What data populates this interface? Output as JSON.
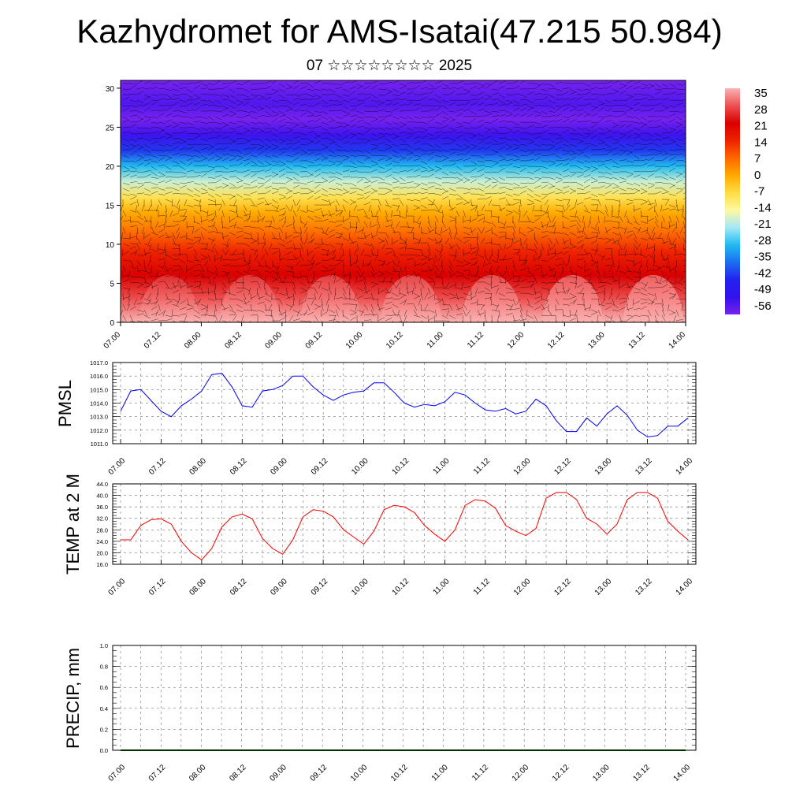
{
  "title": "Kazhydromet for AMS-Isatai(47.215 50.984)",
  "subtitle": "07 ☆☆☆☆☆☆☆☆ 2025",
  "time_labels": [
    "07.00",
    "07.12",
    "08.00",
    "08.12",
    "09.00",
    "09.12",
    "10.00",
    "10.12",
    "11.00",
    "11.12",
    "12.00",
    "12.12",
    "13.00",
    "13.12",
    "14.00"
  ],
  "colors": {
    "pmsl_line": "#0000ff",
    "temp_line": "#ff0000",
    "precip_line": "#006400",
    "grid": "#000000"
  },
  "chart_data": [
    {
      "type": "heatmap",
      "description_fields": "vertical cross-section of temperature with wind barbs",
      "x_categories": [
        "07.00",
        "07.12",
        "08.00",
        "08.12",
        "09.00",
        "09.12",
        "10.00",
        "10.12",
        "11.00",
        "11.12",
        "12.00",
        "12.12",
        "13.00",
        "13.12",
        "14.00"
      ],
      "ylim": [
        0,
        31
      ],
      "yticks": [
        0,
        5,
        10,
        15,
        20,
        25,
        30
      ],
      "colorbar": {
        "ticks": [
          "35",
          "28",
          "21",
          "14",
          "7",
          "0",
          "-7",
          "-14",
          "-21",
          "-28",
          "-35",
          "-42",
          "-49",
          "-56"
        ],
        "colors": [
          "#f8b4b4",
          "#ee5050",
          "#d90000",
          "#ee2200",
          "#ff6600",
          "#ffaa00",
          "#ffdd44",
          "#fff8a0",
          "#a6e8f8",
          "#22bbf0",
          "#1d6ef0",
          "#2222ee",
          "#3311ee",
          "#7722ee"
        ]
      },
      "temperature_levels": [
        {
          "y": 0,
          "value": 35
        },
        {
          "y": 3,
          "value": 28
        },
        {
          "y": 6,
          "value": 21
        },
        {
          "y": 9,
          "value": 14
        },
        {
          "y": 12,
          "value": 5
        },
        {
          "y": 14,
          "value": 0
        },
        {
          "y": 16,
          "value": -8
        },
        {
          "y": 18,
          "value": -18
        },
        {
          "y": 20,
          "value": -28
        },
        {
          "y": 22,
          "value": -40
        },
        {
          "y": 24,
          "value": -50
        },
        {
          "y": 26,
          "value": -56
        },
        {
          "y": 28,
          "value": -52
        },
        {
          "y": 31,
          "value": -60
        }
      ]
    },
    {
      "type": "line",
      "ylabel": "PMSL",
      "ylim": [
        1011.0,
        1017.0
      ],
      "yticks": [
        "1011.0",
        "1012.0",
        "1013.0",
        "1014.0",
        "1015.0",
        "1016.0",
        "1017.0"
      ],
      "categories": [
        "07.00",
        "07.12",
        "08.00",
        "08.12",
        "09.00",
        "09.12",
        "10.00",
        "10.12",
        "11.00",
        "11.12",
        "12.00",
        "12.12",
        "13.00",
        "13.12",
        "14.00"
      ],
      "x": [
        0,
        3,
        6,
        9,
        12,
        15,
        18,
        21,
        24,
        27,
        30,
        33,
        36,
        39,
        42,
        45,
        48,
        51,
        54,
        57,
        60,
        63,
        66,
        69,
        72,
        75,
        78,
        81,
        84,
        87,
        90,
        93,
        96,
        99,
        102,
        105,
        108,
        111,
        114,
        117,
        120,
        123,
        126,
        129,
        132,
        135,
        138,
        141,
        144,
        147,
        150,
        153,
        156,
        159,
        162,
        165,
        168
      ],
      "series": [
        {
          "values": [
            1013.4,
            1014.9,
            1015.0,
            1014.2,
            1013.4,
            1013.0,
            1013.8,
            1014.3,
            1014.9,
            1016.1,
            1016.2,
            1015.2,
            1013.8,
            1013.7,
            1014.9,
            1015.0,
            1015.3,
            1016.0,
            1016.0,
            1015.2,
            1014.6,
            1014.2,
            1014.6,
            1014.8,
            1014.9,
            1015.5,
            1015.5,
            1014.8,
            1014.0,
            1013.7,
            1013.9,
            1013.8,
            1014.1,
            1014.8,
            1014.6,
            1014.0,
            1013.5,
            1013.4,
            1013.6,
            1013.2,
            1013.4,
            1014.3,
            1013.8,
            1012.7,
            1011.9,
            1011.9,
            1012.9,
            1012.3,
            1013.2,
            1013.8,
            1013.1,
            1012.0,
            1011.5,
            1011.6,
            1012.3,
            1012.3,
            1012.9
          ]
        }
      ]
    },
    {
      "type": "line",
      "ylabel": "TEMP at 2 M",
      "ylim": [
        16.0,
        44.0
      ],
      "yticks": [
        "16.0",
        "20.0",
        "24.0",
        "28.0",
        "32.0",
        "36.0",
        "40.0",
        "44.0"
      ],
      "categories": [
        "07.00",
        "07.12",
        "08.00",
        "08.12",
        "09.00",
        "09.12",
        "10.00",
        "10.12",
        "11.00",
        "11.12",
        "12.00",
        "12.12",
        "13.00",
        "13.12",
        "14.00"
      ],
      "x": [
        0,
        3,
        6,
        9,
        12,
        15,
        18,
        21,
        24,
        27,
        30,
        33,
        36,
        39,
        42,
        45,
        48,
        51,
        54,
        57,
        60,
        63,
        66,
        69,
        72,
        75,
        78,
        81,
        84,
        87,
        90,
        93,
        96,
        99,
        102,
        105,
        108,
        111,
        114,
        117,
        120,
        123,
        126,
        129,
        132,
        135,
        138,
        141,
        144,
        147,
        150,
        153,
        156,
        159,
        162,
        165,
        168
      ],
      "series": [
        {
          "values": [
            24.5,
            24.5,
            29.5,
            31.5,
            31.8,
            30.0,
            24.0,
            20.0,
            17.5,
            21.5,
            29.0,
            32.5,
            33.5,
            31.8,
            25.0,
            21.5,
            19.5,
            24.5,
            32.5,
            35.0,
            34.5,
            32.5,
            28.0,
            25.5,
            23.0,
            27.5,
            35.0,
            36.5,
            36.0,
            34.0,
            29.5,
            26.5,
            24.0,
            28.0,
            36.5,
            38.5,
            38.0,
            35.5,
            29.5,
            27.5,
            26.0,
            28.5,
            39.0,
            41.0,
            41.0,
            38.5,
            32.0,
            30.0,
            26.5,
            30.0,
            38.5,
            41.0,
            41.0,
            39.0,
            31.0,
            27.5,
            24.5
          ]
        }
      ]
    },
    {
      "type": "line",
      "ylabel": "PRECIP, mm",
      "ylim": [
        0.0,
        1.0
      ],
      "yticks": [
        "0.0",
        "0.2",
        "0.4",
        "0.6",
        "0.8",
        "1.0"
      ],
      "categories": [
        "07.00",
        "07.12",
        "08.00",
        "08.12",
        "09.00",
        "09.12",
        "10.00",
        "10.12",
        "11.00",
        "11.12",
        "12.00",
        "12.12",
        "13.00",
        "13.12",
        "14.00"
      ],
      "series": [
        {
          "values": [
            0,
            0,
            0,
            0,
            0,
            0,
            0,
            0,
            0,
            0,
            0,
            0,
            0,
            0,
            0
          ]
        }
      ]
    }
  ]
}
